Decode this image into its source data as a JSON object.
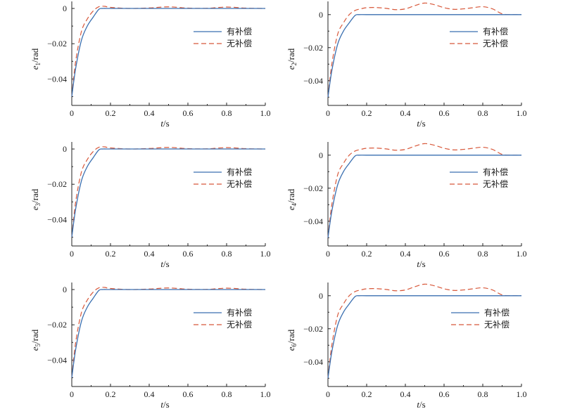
{
  "colors": {
    "compensated": "#3a6fb0",
    "uncompensated": "#d8583a",
    "axis": "#222222"
  },
  "chart_data": [
    {
      "type": "line",
      "xlabel": "t/s",
      "ylabel": "e1/rad",
      "ylabel_parts": [
        "e",
        "1",
        "/rad"
      ],
      "xlim": [
        0,
        1.0
      ],
      "ylim": [
        -0.055,
        0.004
      ],
      "xticks": [
        "0",
        "0.2",
        "0.4",
        "0.6",
        "0.8",
        "1.0"
      ],
      "yticks": [
        "0",
        "−0.02",
        "−0.04"
      ],
      "legend_position": "right",
      "series": [
        {
          "name": "有补偿",
          "style": "solid",
          "x": [
            0,
            0.02,
            0.05,
            0.08,
            0.11,
            0.14,
            0.16,
            0.2,
            0.3,
            0.5,
            0.7,
            1.0
          ],
          "y": [
            -0.05,
            -0.034,
            -0.018,
            -0.01,
            -0.005,
            -0.0005,
            0,
            0,
            0,
            0,
            0,
            0
          ]
        },
        {
          "name": "无补偿",
          "style": "dashed",
          "x": [
            0,
            0.02,
            0.05,
            0.08,
            0.11,
            0.14,
            0.17,
            0.2,
            0.3,
            0.4,
            0.5,
            0.6,
            0.7,
            0.8,
            0.9,
            1.0
          ],
          "y": [
            -0.05,
            -0.03,
            -0.013,
            -0.006,
            -0.0015,
            0.001,
            0.0012,
            0.0006,
            0.0,
            0.0003,
            0.0009,
            0.0002,
            0.0001,
            0.0008,
            0.0002,
            0.0
          ]
        }
      ]
    },
    {
      "type": "line",
      "xlabel": "t/s",
      "ylabel": "e2/rad",
      "ylabel_parts": [
        "e",
        "2",
        "/rad"
      ],
      "xlim": [
        0,
        1.0
      ],
      "ylim": [
        -0.055,
        0.008
      ],
      "xticks": [
        "0",
        "0.2",
        "0.4",
        "0.6",
        "0.8",
        "1.0"
      ],
      "yticks": [
        "0",
        "−0.02",
        "−0.04"
      ],
      "legend_position": "right",
      "series": [
        {
          "name": "有补偿",
          "style": "solid",
          "x": [
            0,
            0.02,
            0.05,
            0.08,
            0.11,
            0.14,
            0.16,
            0.2,
            0.3,
            0.5,
            0.7,
            1.0
          ],
          "y": [
            -0.05,
            -0.034,
            -0.018,
            -0.01,
            -0.005,
            -0.0005,
            0,
            0,
            0,
            0,
            0,
            0
          ]
        },
        {
          "name": "无补偿",
          "style": "dashed",
          "x": [
            0,
            0.02,
            0.05,
            0.08,
            0.11,
            0.14,
            0.17,
            0.2,
            0.25,
            0.3,
            0.35,
            0.4,
            0.45,
            0.5,
            0.55,
            0.6,
            0.65,
            0.7,
            0.75,
            0.8,
            0.85,
            0.9,
            0.95,
            1.0
          ],
          "y": [
            -0.05,
            -0.03,
            -0.012,
            -0.005,
            0.0,
            0.0025,
            0.0035,
            0.0042,
            0.0043,
            0.0038,
            0.003,
            0.0035,
            0.0055,
            0.007,
            0.006,
            0.0042,
            0.0032,
            0.0035,
            0.0042,
            0.0048,
            0.0035,
            0.0005,
            0.0,
            0.0
          ]
        }
      ]
    },
    {
      "type": "line",
      "xlabel": "t/s",
      "ylabel": "e3/rad",
      "ylabel_parts": [
        "e",
        "3",
        "/rad"
      ],
      "xlim": [
        0,
        1.0
      ],
      "ylim": [
        -0.055,
        0.004
      ],
      "xticks": [
        "0",
        "0.2",
        "0.4",
        "0.6",
        "0.8",
        "1.0"
      ],
      "yticks": [
        "0",
        "−0.02",
        "−0.04"
      ],
      "legend_position": "right",
      "series": [
        {
          "name": "有补偿",
          "style": "solid",
          "x": [
            0,
            0.02,
            0.05,
            0.08,
            0.11,
            0.14,
            0.16,
            0.2,
            0.3,
            0.5,
            0.7,
            1.0
          ],
          "y": [
            -0.05,
            -0.034,
            -0.018,
            -0.01,
            -0.005,
            -0.0005,
            0,
            0,
            0,
            0,
            0,
            0
          ]
        },
        {
          "name": "无补偿",
          "style": "dashed",
          "x": [
            0,
            0.02,
            0.05,
            0.08,
            0.11,
            0.14,
            0.17,
            0.2,
            0.3,
            0.4,
            0.5,
            0.6,
            0.7,
            0.8,
            0.9,
            1.0
          ],
          "y": [
            -0.05,
            -0.03,
            -0.013,
            -0.006,
            -0.0015,
            0.001,
            0.0012,
            0.0006,
            0.0,
            0.0003,
            0.0009,
            0.0002,
            0.0001,
            0.0008,
            0.0002,
            0.0
          ]
        }
      ]
    },
    {
      "type": "line",
      "xlabel": "t/s",
      "ylabel": "e4/rad",
      "ylabel_parts": [
        "e",
        "4",
        "/rad"
      ],
      "xlim": [
        0,
        1.0
      ],
      "ylim": [
        -0.055,
        0.008
      ],
      "xticks": [
        "0",
        "0.2",
        "0.4",
        "0.6",
        "0.8",
        "1.0"
      ],
      "yticks": [
        "0",
        "−0.02",
        "−0.04"
      ],
      "legend_position": "right",
      "series": [
        {
          "name": "有补偿",
          "style": "solid",
          "x": [
            0,
            0.02,
            0.05,
            0.08,
            0.11,
            0.14,
            0.16,
            0.2,
            0.3,
            0.5,
            0.7,
            1.0
          ],
          "y": [
            -0.05,
            -0.034,
            -0.018,
            -0.01,
            -0.005,
            -0.0005,
            0,
            0,
            0,
            0,
            0,
            0
          ]
        },
        {
          "name": "无补偿",
          "style": "dashed",
          "x": [
            0,
            0.02,
            0.05,
            0.08,
            0.11,
            0.14,
            0.17,
            0.2,
            0.25,
            0.3,
            0.35,
            0.4,
            0.45,
            0.5,
            0.55,
            0.6,
            0.65,
            0.7,
            0.75,
            0.8,
            0.85,
            0.9,
            0.95,
            1.0
          ],
          "y": [
            -0.05,
            -0.03,
            -0.012,
            -0.005,
            0.0,
            0.0025,
            0.0035,
            0.0042,
            0.0043,
            0.0038,
            0.003,
            0.0035,
            0.0055,
            0.007,
            0.006,
            0.0042,
            0.0032,
            0.0035,
            0.0042,
            0.0048,
            0.0035,
            0.0005,
            0.0,
            0.0
          ]
        }
      ]
    },
    {
      "type": "line",
      "xlabel": "t/s",
      "ylabel": "e5/rad",
      "ylabel_parts": [
        "e",
        "5",
        "/rad"
      ],
      "xlim": [
        0,
        1.0
      ],
      "ylim": [
        -0.055,
        0.004
      ],
      "xticks": [
        "0",
        "0.2",
        "0.4",
        "0.6",
        "0.8",
        "1.0"
      ],
      "yticks": [
        "0",
        "−0.02",
        "−0.04"
      ],
      "legend_position": "right",
      "series": [
        {
          "name": "有补偿",
          "style": "solid",
          "x": [
            0,
            0.02,
            0.05,
            0.08,
            0.11,
            0.14,
            0.16,
            0.2,
            0.3,
            0.5,
            0.7,
            1.0
          ],
          "y": [
            -0.05,
            -0.034,
            -0.018,
            -0.01,
            -0.005,
            -0.0005,
            0,
            0,
            0,
            0,
            0,
            0
          ]
        },
        {
          "name": "无补偿",
          "style": "dashed",
          "x": [
            0,
            0.02,
            0.05,
            0.08,
            0.11,
            0.14,
            0.17,
            0.2,
            0.3,
            0.4,
            0.5,
            0.6,
            0.7,
            0.8,
            0.9,
            1.0
          ],
          "y": [
            -0.05,
            -0.03,
            -0.013,
            -0.006,
            -0.0015,
            0.001,
            0.0012,
            0.0006,
            0.0,
            0.0003,
            0.0009,
            0.0002,
            0.0001,
            0.0008,
            0.0002,
            0.0
          ]
        }
      ]
    },
    {
      "type": "line",
      "xlabel": "t/s",
      "ylabel": "e6/rad",
      "ylabel_parts": [
        "e",
        "6",
        "/rad"
      ],
      "xlim": [
        0,
        1.0
      ],
      "ylim": [
        -0.055,
        0.008
      ],
      "xticks": [
        "0",
        "0.2",
        "0.4",
        "0.6",
        "0.8",
        "1.0"
      ],
      "yticks": [
        "0",
        "−0.02",
        "−0.04"
      ],
      "legend_position": "right",
      "series": [
        {
          "name": "有补偿",
          "style": "solid",
          "x": [
            0,
            0.02,
            0.05,
            0.08,
            0.11,
            0.14,
            0.16,
            0.2,
            0.3,
            0.5,
            0.7,
            1.0
          ],
          "y": [
            -0.05,
            -0.034,
            -0.018,
            -0.01,
            -0.005,
            -0.0005,
            0,
            0,
            0,
            0,
            0,
            0
          ]
        },
        {
          "name": "无补偿",
          "style": "dashed",
          "x": [
            0,
            0.02,
            0.05,
            0.08,
            0.11,
            0.14,
            0.17,
            0.2,
            0.25,
            0.3,
            0.35,
            0.4,
            0.45,
            0.5,
            0.55,
            0.6,
            0.65,
            0.7,
            0.75,
            0.8,
            0.85,
            0.9,
            0.95,
            1.0
          ],
          "y": [
            -0.05,
            -0.03,
            -0.012,
            -0.005,
            0.0,
            0.0025,
            0.0035,
            0.0042,
            0.0043,
            0.0038,
            0.003,
            0.0035,
            0.0055,
            0.007,
            0.006,
            0.0042,
            0.0032,
            0.0035,
            0.0042,
            0.0048,
            0.0035,
            0.0005,
            0.0,
            0.0
          ]
        }
      ]
    }
  ]
}
